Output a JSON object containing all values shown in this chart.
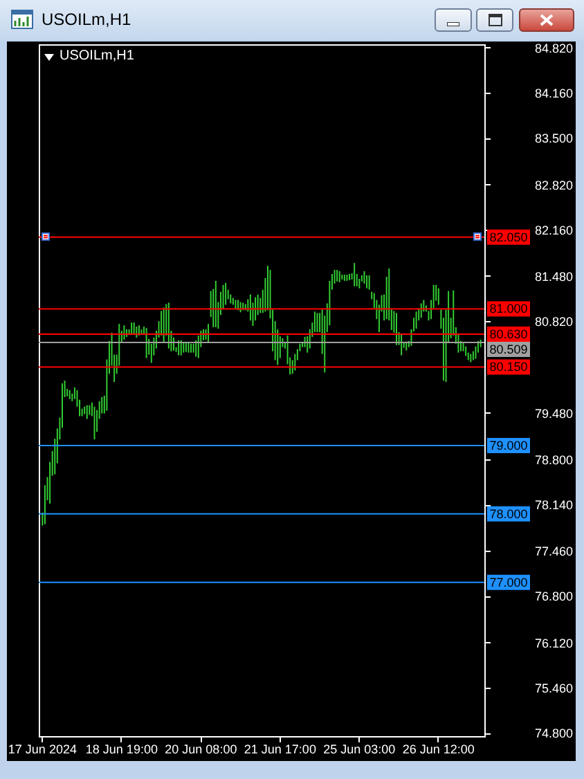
{
  "chart_data": {
    "type": "bar",
    "title": "USOILm,H1",
    "subtitle": "USOILm,H1",
    "categories": [
      "17 Jun 2024",
      null,
      null,
      null,
      null,
      null,
      null,
      null,
      null,
      null,
      null,
      null,
      null,
      null,
      null,
      null,
      null,
      null,
      null,
      null,
      null,
      null,
      null,
      null,
      null,
      null,
      null,
      null,
      null,
      null,
      null,
      null,
      "18 Jun 19:00",
      null,
      null,
      null,
      null,
      null,
      null,
      null,
      null,
      null,
      null,
      null,
      null,
      null,
      null,
      null,
      null,
      null,
      null,
      null,
      null,
      null,
      null,
      null,
      null,
      null,
      null,
      null,
      null,
      null,
      null,
      null,
      "20 Jun 08:00",
      null,
      null,
      null,
      null,
      null,
      null,
      null,
      null,
      null,
      null,
      null,
      null,
      null,
      null,
      null,
      null,
      null,
      null,
      null,
      null,
      null,
      null,
      null,
      null,
      null,
      null,
      null,
      null,
      null,
      null,
      null,
      "21 Jun 17:00",
      null,
      null,
      null,
      null,
      null,
      null,
      null,
      null,
      null,
      null,
      null,
      null,
      null,
      null,
      null,
      null,
      null,
      null,
      null,
      null,
      null,
      null,
      null,
      null,
      null,
      null,
      null,
      null,
      null,
      null,
      null,
      "25 Jun 03:00",
      null,
      null,
      null,
      null,
      null,
      null,
      null,
      null,
      null,
      null,
      null,
      null,
      null,
      null,
      null,
      null,
      null,
      null,
      null,
      null,
      null,
      null,
      null,
      null,
      null,
      null,
      null,
      null,
      null,
      null,
      null,
      "26 Jun 12:00",
      null,
      null,
      null,
      null,
      null,
      null,
      null,
      null,
      null,
      null,
      null,
      null,
      null,
      null,
      null,
      null,
      null
    ],
    "base": [
      77.83,
      77.85,
      78.2,
      78.15,
      78.56,
      78.58,
      78.74,
      79.09,
      79.26,
      79.71,
      79.72,
      79.68,
      79.65,
      79.68,
      79.57,
      79.43,
      79.43,
      79.46,
      79.39,
      79.45,
      79.43,
      79.09,
      79.2,
      79.39,
      79.47,
      79.47,
      79.51,
      80.05,
      80.17,
      79.93,
      80.05,
      80.17,
      80.51,
      80.55,
      80.59,
      80.63,
      80.63,
      80.64,
      80.58,
      80.61,
      80.63,
      80.63,
      80.28,
      80.33,
      80.21,
      80.32,
      80.42,
      80.58,
      80.61,
      80.51,
      80.61,
      80.42,
      80.38,
      80.39,
      80.37,
      80.32,
      80.32,
      80.36,
      80.37,
      80.36,
      80.36,
      80.36,
      80.3,
      80.28,
      80.44,
      80.54,
      80.55,
      80.51,
      80.88,
      80.73,
      80.73,
      80.71,
      80.91,
      81.0,
      81.06,
      81.14,
      81.08,
      81.06,
      81.0,
      80.98,
      80.95,
      80.98,
      80.98,
      80.96,
      80.83,
      80.75,
      80.83,
      80.91,
      80.94,
      80.94,
      80.96,
      80.98,
      80.86,
      80.38,
      80.25,
      80.18,
      80.28,
      80.44,
      80.42,
      80.19,
      80.04,
      80.05,
      80.1,
      80.25,
      80.38,
      80.44,
      80.44,
      80.36,
      80.42,
      80.59,
      80.66,
      80.66,
      80.66,
      80.34,
      80.07,
      80.66,
      80.76,
      81.28,
      81.37,
      81.4,
      81.39,
      81.43,
      81.41,
      81.41,
      81.42,
      81.43,
      81.33,
      81.33,
      81.3,
      81.4,
      81.37,
      81.3,
      81.28,
      81.14,
      81.01,
      80.85,
      80.66,
      80.96,
      80.83,
      80.85,
      80.83,
      80.69,
      80.65,
      80.47,
      80.47,
      80.32,
      80.43,
      80.39,
      80.44,
      80.46,
      80.67,
      80.71,
      80.83,
      80.87,
      80.96,
      80.96,
      80.83,
      80.85,
      81.01,
      81.12,
      81.06,
      80.71,
      79.95,
      79.93,
      80.51,
      80.57,
      80.61,
      80.49,
      80.36,
      80.38,
      80.38,
      80.31,
      80.25,
      80.22,
      80.25,
      80.27,
      80.36,
      80.44
    ],
    "values": [
      0.19,
      0.57,
      0.34,
      0.61,
      0.36,
      0.52,
      0.51,
      0.32,
      0.65,
      0.24,
      0.11,
      0.13,
      0.11,
      0.17,
      0.24,
      0.24,
      0.11,
      0.11,
      0.2,
      0.14,
      0.2,
      0.48,
      0.32,
      0.26,
      0.24,
      0.26,
      0.75,
      0.48,
      0.48,
      0.4,
      0.28,
      0.61,
      0.17,
      0.21,
      0.11,
      0.07,
      0.17,
      0.16,
      0.16,
      0.15,
      0.07,
      0.11,
      0.44,
      0.23,
      0.28,
      0.26,
      0.26,
      0.24,
      0.36,
      0.51,
      0.46,
      0.67,
      0.3,
      0.19,
      0.07,
      0.22,
      0.22,
      0.14,
      0.13,
      0.14,
      0.13,
      0.13,
      0.24,
      0.33,
      0.24,
      0.16,
      0.15,
      0.27,
      0.38,
      0.56,
      0.68,
      0.39,
      0.34,
      0.35,
      0.32,
      0.14,
      0.13,
      0.1,
      0.13,
      0.15,
      0.15,
      0.11,
      0.09,
      0.18,
      0.38,
      0.34,
      0.34,
      0.3,
      0.22,
      0.34,
      0.49,
      0.65,
      0.71,
      0.61,
      0.57,
      0.52,
      0.32,
      0.13,
      0.09,
      0.42,
      0.25,
      0.2,
      0.24,
      0.16,
      0.11,
      0.07,
      0.15,
      0.24,
      0.28,
      0.21,
      0.3,
      0.28,
      0.28,
      0.65,
      0.83,
      0.42,
      0.65,
      0.23,
      0.2,
      0.17,
      0.16,
      0.07,
      0.09,
      0.09,
      0.09,
      0.09,
      0.34,
      0.18,
      0.14,
      0.09,
      0.18,
      0.19,
      0.21,
      0.11,
      0.22,
      0.28,
      0.4,
      0.24,
      0.38,
      0.62,
      0.76,
      0.3,
      0.32,
      0.47,
      0.19,
      0.3,
      0.08,
      0.13,
      0.09,
      0.24,
      0.2,
      0.25,
      0.17,
      0.21,
      0.17,
      0.09,
      0.14,
      0.28,
      0.34,
      0.23,
      0.24,
      0.28,
      0.92,
      1.06,
      0.75,
      0.3,
      0.66,
      0.24,
      0.26,
      0.15,
      0.12,
      0.14,
      0.11,
      0.12,
      0.13,
      0.18,
      0.17,
      0.11
    ],
    "color": "#32cd32",
    "ylim": [
      74.75,
      84.87
    ],
    "yticks": [
      {
        "value": 84.82,
        "label": "84.820"
      },
      {
        "value": 84.16,
        "label": "84.160"
      },
      {
        "value": 83.5,
        "label": "83.500"
      },
      {
        "value": 82.82,
        "label": "82.820"
      },
      {
        "value": 82.16,
        "label": "82.160"
      },
      {
        "value": 81.48,
        "label": "81.480"
      },
      {
        "value": 80.82,
        "label": "80.820"
      },
      {
        "value": 79.48,
        "label": "79.480"
      },
      {
        "value": 78.8,
        "label": "78.800"
      },
      {
        "value": 78.14,
        "label": "78.140"
      },
      {
        "value": 77.46,
        "label": "77.460"
      },
      {
        "value": 76.8,
        "label": "76.800"
      },
      {
        "value": 76.12,
        "label": "76.120"
      },
      {
        "value": 75.46,
        "label": "75.460"
      },
      {
        "value": 74.8,
        "label": "74.800"
      }
    ],
    "ref_lines": [
      {
        "axis": "y",
        "value": 82.05,
        "label": "82.050",
        "color": "#ff0000"
      },
      {
        "axis": "y",
        "value": 81,
        "label": "81.000",
        "color": "#ff0000"
      },
      {
        "axis": "y",
        "value": 80.63,
        "label": "80.630",
        "color": "#ff0000"
      },
      {
        "axis": "y",
        "value": 80.509,
        "label": "80.509",
        "color": "#a0a0a0"
      },
      {
        "axis": "y",
        "value": 80.15,
        "label": "80.150",
        "color": "#ff0000"
      },
      {
        "axis": "y",
        "value": 79,
        "label": "79.000",
        "color": "#1e90ff"
      },
      {
        "axis": "y",
        "value": 78,
        "label": "78.000",
        "color": "#1e90ff"
      },
      {
        "axis": "y",
        "value": 77,
        "label": "77.000",
        "color": "#1e90ff"
      }
    ]
  }
}
